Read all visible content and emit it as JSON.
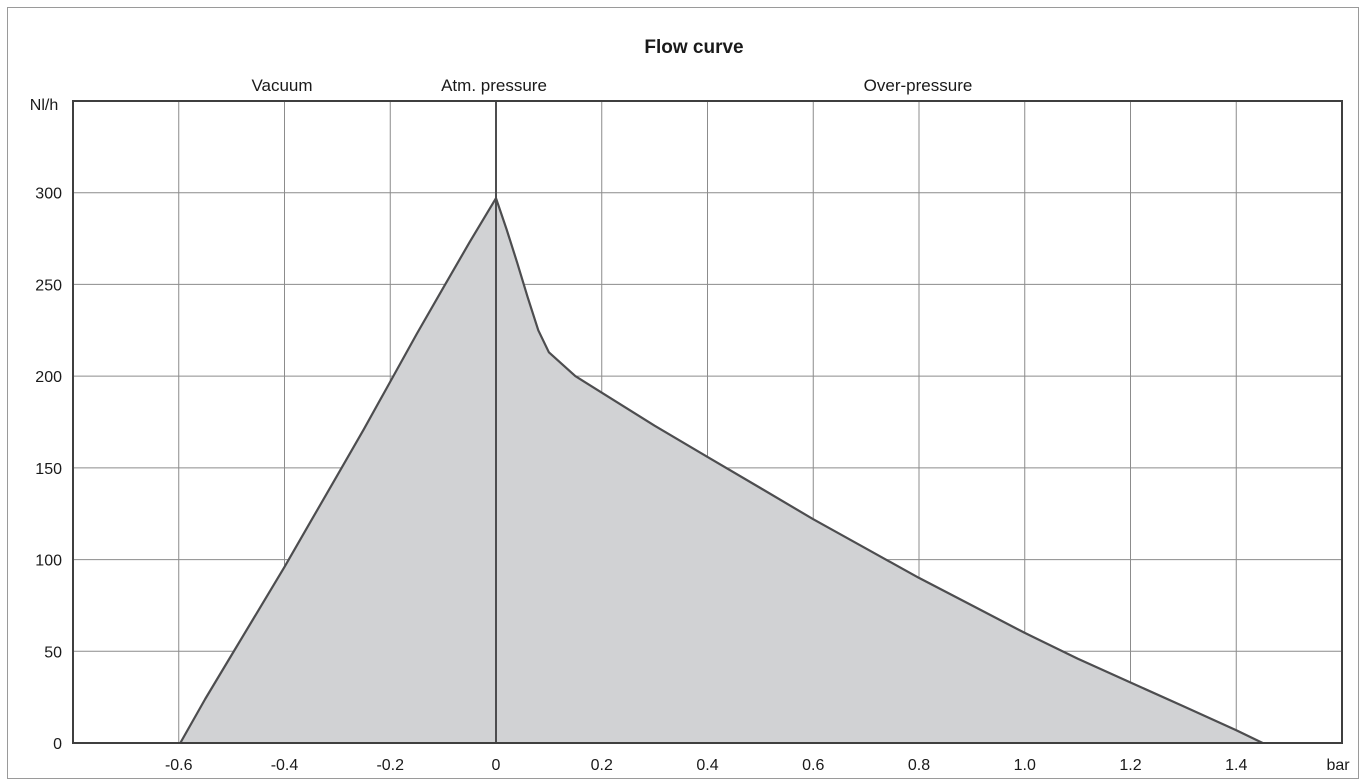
{
  "chart_data": {
    "type": "area",
    "title": "Flow curve",
    "region_labels": {
      "vacuum": "Vacuum",
      "atm": "Atm. pressure",
      "over": "Over-pressure"
    },
    "xlabel": "bar",
    "ylabel": "Nl/h",
    "xlim": [
      -0.8,
      1.6
    ],
    "ylim": [
      0,
      350
    ],
    "x_ticks": [
      -0.6,
      -0.4,
      -0.2,
      0,
      0.2,
      0.4,
      0.6,
      0.8,
      1.0,
      1.2,
      1.4
    ],
    "x_tick_labels": [
      "-0.6",
      "-0.4",
      "-0.2",
      "0",
      "0.2",
      "0.4",
      "0.6",
      "0.8",
      "1.0",
      "1.2",
      "1.4"
    ],
    "y_ticks": [
      0,
      50,
      100,
      150,
      200,
      250,
      300
    ],
    "y_tick_labels": [
      "0",
      "50",
      "100",
      "150",
      "200",
      "250",
      "300"
    ],
    "grid": true,
    "fill_color": "#d1d2d4",
    "line_color": "#4d4d4f",
    "series": [
      {
        "x": [
          -0.597,
          -0.55,
          -0.5,
          -0.45,
          -0.4,
          -0.35,
          -0.3,
          -0.25,
          -0.2,
          -0.15,
          -0.1,
          -0.05,
          0,
          0.02,
          0.04,
          0.06,
          0.08,
          0.1,
          0.15,
          0.2,
          0.3,
          0.4,
          0.5,
          0.6,
          0.7,
          0.8,
          0.9,
          1.0,
          1.1,
          1.2,
          1.3,
          1.4,
          1.45
        ],
        "y": [
          0,
          24,
          48,
          72,
          96,
          121,
          146,
          171,
          197,
          223,
          248,
          273,
          297,
          280,
          262,
          243,
          225,
          213,
          200,
          191,
          173,
          156,
          139,
          122,
          106,
          90,
          75,
          60,
          46,
          33,
          20,
          7,
          0
        ]
      }
    ]
  }
}
